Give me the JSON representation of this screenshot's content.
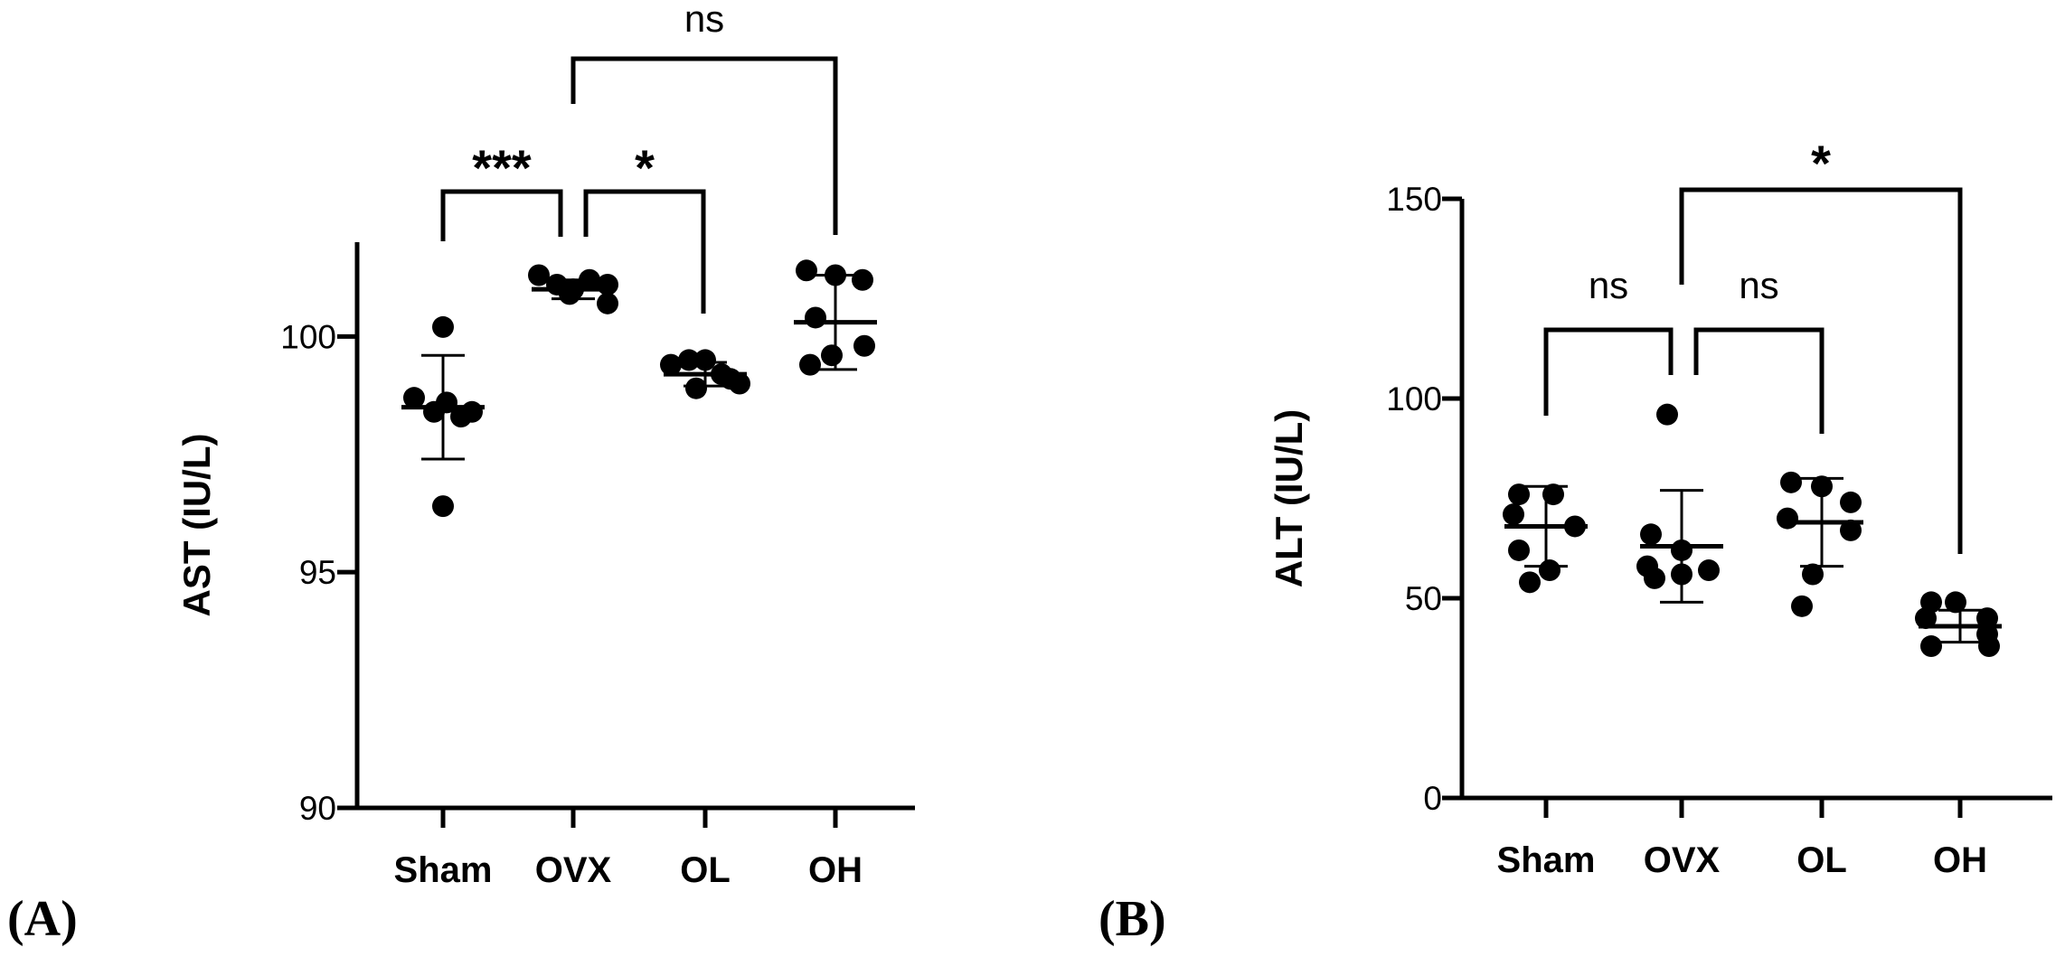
{
  "chart_data": [
    {
      "type": "scatter",
      "panel_label": "(A)",
      "ylabel": "AST (IU/L)",
      "ylim": [
        90,
        102
      ],
      "yticks": [
        "90",
        "95",
        "100"
      ],
      "ytick_values": [
        90,
        95,
        100
      ],
      "categories": [
        "Sham",
        "OVX",
        "OL",
        "OH"
      ],
      "points": [
        [
          100.2,
          98.7,
          98.6,
          98.4,
          98.4,
          98.3,
          96.4
        ],
        [
          101.3,
          101.1,
          101.0,
          101.2,
          101.1,
          100.9,
          100.7
        ],
        [
          99.4,
          99.5,
          99.5,
          99.2,
          99.0,
          98.9,
          99.1
        ],
        [
          101.4,
          101.3,
          101.2,
          100.4,
          99.6,
          99.8,
          99.4
        ]
      ],
      "mean": [
        98.5,
        101.0,
        99.2,
        100.3
      ],
      "sd": [
        1.1,
        0.2,
        0.25,
        1.0
      ],
      "comparisons": [
        {
          "from": "Sham",
          "to": "OVX",
          "label": "***"
        },
        {
          "from": "OVX",
          "to": "OL",
          "label": "*"
        },
        {
          "from": "OVX",
          "to": "OH",
          "label": "ns"
        }
      ]
    },
    {
      "type": "scatter",
      "panel_label": "(B)",
      "ylabel": "ALT (IU/L)",
      "ylim": [
        0,
        150
      ],
      "yticks": [
        "0",
        "50",
        "100",
        "150"
      ],
      "ytick_values": [
        0,
        50,
        100,
        150
      ],
      "categories": [
        "Sham",
        "OVX",
        "OL",
        "OH"
      ],
      "points": [
        [
          76,
          76,
          71,
          68,
          62,
          57,
          54
        ],
        [
          96,
          66,
          62,
          58,
          57,
          56,
          55
        ],
        [
          79,
          78,
          74,
          70,
          67,
          56,
          48
        ],
        [
          49,
          49,
          45,
          45,
          41,
          38,
          38
        ]
      ],
      "mean": [
        68,
        63,
        69,
        43
      ],
      "sd": [
        10,
        14,
        11,
        4
      ],
      "comparisons": [
        {
          "from": "Sham",
          "to": "OVX",
          "label": "ns"
        },
        {
          "from": "OVX",
          "to": "OL",
          "label": "ns"
        },
        {
          "from": "OVX",
          "to": "OH",
          "label": "*"
        }
      ]
    }
  ]
}
